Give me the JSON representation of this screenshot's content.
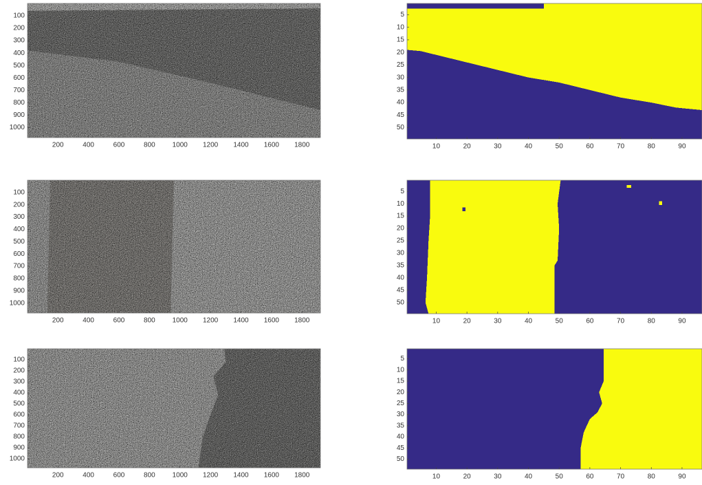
{
  "chart_data": [
    {
      "type": "image",
      "xlim": [
        0.5,
        1920.5
      ],
      "ylim": [
        1080.5,
        0.5
      ],
      "xticks": [
        200,
        400,
        600,
        800,
        1000,
        1200,
        1400,
        1600,
        1800
      ],
      "yticks": [
        100,
        200,
        300,
        400,
        500,
        600,
        700,
        800,
        900,
        1000
      ]
    },
    {
      "type": "mask",
      "xlim": [
        0.5,
        96.5
      ],
      "ylim": [
        54.5,
        0.5
      ],
      "xticks": [
        10,
        20,
        30,
        40,
        50,
        60,
        70,
        80,
        90
      ],
      "yticks": [
        5,
        10,
        15,
        20,
        25,
        30,
        35,
        40,
        45,
        50
      ]
    },
    {
      "type": "image",
      "xlim": [
        0.5,
        1920.5
      ],
      "ylim": [
        1080.5,
        0.5
      ],
      "xticks": [
        200,
        400,
        600,
        800,
        1000,
        1200,
        1400,
        1600,
        1800
      ],
      "yticks": [
        100,
        200,
        300,
        400,
        500,
        600,
        700,
        800,
        900,
        1000
      ]
    },
    {
      "type": "mask",
      "xlim": [
        0.5,
        96.5
      ],
      "ylim": [
        54.5,
        0.5
      ],
      "xticks": [
        10,
        20,
        30,
        40,
        50,
        60,
        70,
        80,
        90
      ],
      "yticks": [
        5,
        10,
        15,
        20,
        25,
        30,
        35,
        40,
        45,
        50
      ]
    },
    {
      "type": "image",
      "xlim": [
        0.5,
        1920.5
      ],
      "ylim": [
        1080.5,
        0.5
      ],
      "xticks": [
        200,
        400,
        600,
        800,
        1000,
        1200,
        1400,
        1600,
        1800
      ],
      "yticks": [
        100,
        200,
        300,
        400,
        500,
        600,
        700,
        800,
        900,
        1000
      ]
    },
    {
      "type": "mask",
      "xlim": [
        0.5,
        96.5
      ],
      "ylim": [
        54.5,
        0.5
      ],
      "xticks": [
        10,
        20,
        30,
        40,
        50,
        60,
        70,
        80,
        90
      ],
      "yticks": [
        5,
        10,
        15,
        20,
        25,
        30,
        35,
        40,
        45,
        50
      ]
    }
  ]
}
